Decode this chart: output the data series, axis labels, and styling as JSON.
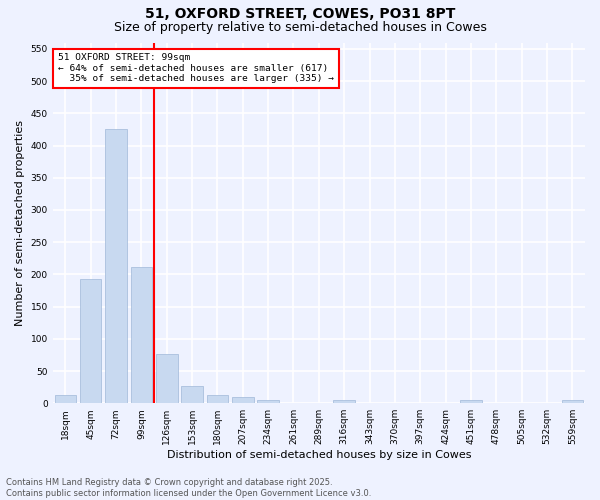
{
  "title": "51, OXFORD STREET, COWES, PO31 8PT",
  "subtitle": "Size of property relative to semi-detached houses in Cowes",
  "xlabel": "Distribution of semi-detached houses by size in Cowes",
  "ylabel": "Number of semi-detached properties",
  "categories": [
    "18sqm",
    "45sqm",
    "72sqm",
    "99sqm",
    "126sqm",
    "153sqm",
    "180sqm",
    "207sqm",
    "234sqm",
    "261sqm",
    "289sqm",
    "316sqm",
    "343sqm",
    "370sqm",
    "397sqm",
    "424sqm",
    "451sqm",
    "478sqm",
    "505sqm",
    "532sqm",
    "559sqm"
  ],
  "values": [
    13,
    193,
    425,
    212,
    77,
    27,
    13,
    10,
    5,
    0,
    0,
    5,
    0,
    0,
    0,
    0,
    5,
    0,
    0,
    0,
    5
  ],
  "bar_color": "#c8d9f0",
  "bar_edgecolor": "#a0b8d8",
  "vline_x": 3.5,
  "vline_color": "red",
  "annotation_text": "51 OXFORD STREET: 99sqm\n← 64% of semi-detached houses are smaller (617)\n  35% of semi-detached houses are larger (335) →",
  "annotation_box_color": "white",
  "annotation_box_edgecolor": "red",
  "ylim": [
    0,
    560
  ],
  "yticks": [
    0,
    50,
    100,
    150,
    200,
    250,
    300,
    350,
    400,
    450,
    500,
    550
  ],
  "background_color": "#eef2ff",
  "grid_color": "white",
  "footer": "Contains HM Land Registry data © Crown copyright and database right 2025.\nContains public sector information licensed under the Open Government Licence v3.0.",
  "title_fontsize": 10,
  "subtitle_fontsize": 9,
  "xlabel_fontsize": 8,
  "ylabel_fontsize": 8,
  "tick_fontsize": 6.5,
  "footer_fontsize": 6
}
